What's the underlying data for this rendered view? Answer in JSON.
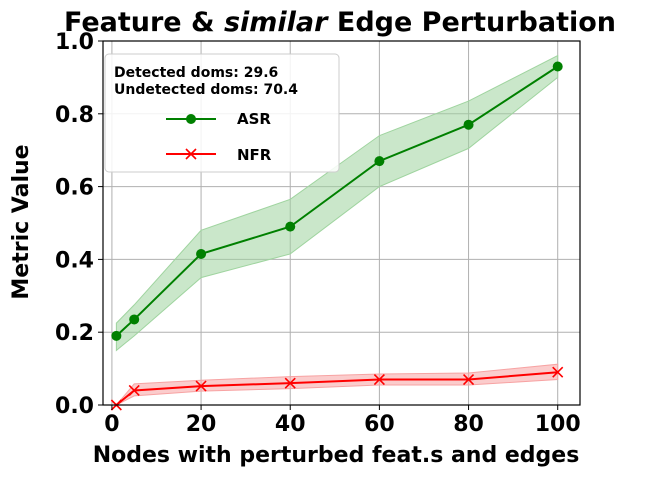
{
  "chart_data": {
    "type": "line",
    "title_prefix": "Feature & ",
    "title_italic": "similar",
    "title_suffix": " Edge Perturbation",
    "xlabel": "Nodes with perturbed feat.s and edges",
    "ylabel": "Metric Value",
    "x": [
      1,
      5,
      20,
      40,
      60,
      80,
      100
    ],
    "xlim": [
      -2,
      105
    ],
    "ylim": [
      0.0,
      1.0
    ],
    "xticks": [
      0,
      20,
      40,
      60,
      80,
      100
    ],
    "yticks": [
      0.0,
      0.2,
      0.4,
      0.6,
      0.8,
      1.0
    ],
    "ytick_labels": [
      "0.0",
      "0.2",
      "0.4",
      "0.6",
      "0.8",
      "1.0"
    ],
    "grid": true,
    "legend_position": "top-left",
    "legend_notes": [
      "Detected doms: 29.6",
      "Undetected doms: 70.4"
    ],
    "series": [
      {
        "name": "ASR",
        "color": "#008000",
        "band_color": "#9fd49f",
        "marker": "circle",
        "values": [
          0.19,
          0.235,
          0.415,
          0.49,
          0.67,
          0.77,
          0.93
        ],
        "lower": [
          0.15,
          0.19,
          0.35,
          0.415,
          0.6,
          0.705,
          0.9
        ],
        "upper": [
          0.225,
          0.275,
          0.48,
          0.565,
          0.74,
          0.835,
          0.96
        ]
      },
      {
        "name": "NFR",
        "color": "#ff0000",
        "band_color": "#f7a3a3",
        "marker": "x",
        "values": [
          0.0,
          0.04,
          0.052,
          0.06,
          0.07,
          0.07,
          0.09
        ],
        "lower": [
          0.0,
          0.025,
          0.038,
          0.045,
          0.055,
          0.055,
          0.07
        ],
        "upper": [
          0.0,
          0.058,
          0.068,
          0.078,
          0.085,
          0.088,
          0.112
        ]
      }
    ]
  }
}
